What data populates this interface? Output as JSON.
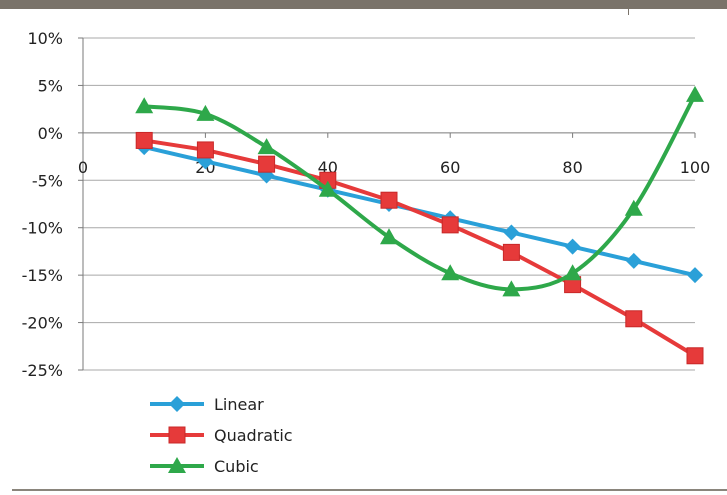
{
  "chart_data": {
    "type": "line",
    "title": "",
    "xlabel": "",
    "ylabel": "",
    "xlim": [
      0,
      100
    ],
    "ylim": [
      -25,
      10
    ],
    "x_ticks": [
      "0",
      "20",
      "40",
      "60",
      "80",
      "100"
    ],
    "y_ticks": [
      "10%",
      "5%",
      "0%",
      "-5%",
      "-10%",
      "-15%",
      "-20%",
      "-25%"
    ],
    "grid": true,
    "legend_position": "bottom-left",
    "series": [
      {
        "name": "Linear",
        "color": "#2aa0d8",
        "marker": "diamond",
        "smooth": false,
        "x": [
          10,
          20,
          30,
          40,
          50,
          60,
          70,
          80,
          90,
          100
        ],
        "values": [
          -1.5,
          -3,
          -4.5,
          -6,
          -7.5,
          -9,
          -10.5,
          -12,
          -13.5,
          -15
        ]
      },
      {
        "name": "Quadratic",
        "color": "#e63a3a",
        "marker": "square",
        "smooth": false,
        "x": [
          10,
          20,
          30,
          40,
          50,
          60,
          70,
          80,
          90,
          100
        ],
        "values": [
          -0.8,
          -1.8,
          -3.3,
          -5.0,
          -7.1,
          -9.7,
          -12.6,
          -16.0,
          -19.6,
          -23.5
        ]
      },
      {
        "name": "Cubic",
        "color": "#2ea84a",
        "marker": "triangle",
        "smooth": true,
        "x": [
          10,
          20,
          30,
          40,
          50,
          60,
          70,
          80,
          90,
          100
        ],
        "values": [
          2.8,
          2.0,
          -1.5,
          -6.0,
          -11.0,
          -14.8,
          -16.5,
          -14.8,
          -8.0,
          4.0
        ]
      }
    ]
  }
}
